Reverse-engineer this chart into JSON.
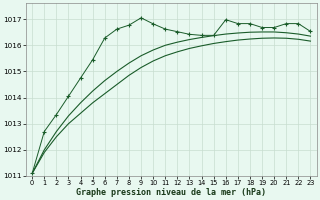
{
  "title": "Graphe pression niveau de la mer (hPa)",
  "bg_color": "#e8f8f0",
  "grid_color": "#c8ddd0",
  "line_color": "#1a5c2a",
  "xlim": [
    -0.5,
    23.5
  ],
  "ylim": [
    1011,
    1017.6
  ],
  "yticks": [
    1011,
    1012,
    1013,
    1014,
    1015,
    1016,
    1017
  ],
  "xticks": [
    0,
    1,
    2,
    3,
    4,
    5,
    6,
    7,
    8,
    9,
    10,
    11,
    12,
    13,
    14,
    15,
    16,
    17,
    18,
    19,
    20,
    21,
    22,
    23
  ],
  "line_marker_x": [
    0,
    1,
    2,
    3,
    4,
    5,
    6,
    7,
    8,
    9,
    10,
    11,
    12,
    13,
    14,
    15,
    16,
    17,
    18,
    19,
    20,
    21,
    22,
    23
  ],
  "line_marker_y": [
    1011.1,
    1012.7,
    1013.35,
    1014.1,
    1014.85,
    1015.5,
    1016.3,
    1016.65,
    1016.8,
    1017.1,
    1016.85,
    1016.65,
    1016.55,
    1016.45,
    1016.4,
    1016.4,
    1017.0,
    1016.85,
    1016.85,
    1016.7,
    1016.7,
    1016.85,
    1016.85,
    1016.55
  ],
  "line_smooth1_x": [
    0,
    1,
    2,
    3,
    4,
    5,
    6,
    7,
    8,
    9,
    10,
    11,
    12,
    13,
    14,
    15,
    16,
    17,
    18,
    19,
    20,
    21,
    22,
    23
  ],
  "line_smooth1_y": [
    1011.1,
    1011.9,
    1012.5,
    1013.0,
    1013.4,
    1013.8,
    1014.15,
    1014.5,
    1014.85,
    1015.15,
    1015.4,
    1015.6,
    1015.75,
    1015.88,
    1015.98,
    1016.07,
    1016.14,
    1016.2,
    1016.24,
    1016.27,
    1016.28,
    1016.27,
    1016.23,
    1016.16
  ],
  "line_smooth2_x": [
    0,
    1,
    2,
    3,
    4,
    5,
    6,
    7,
    8,
    9,
    10,
    11,
    12,
    13,
    14,
    15,
    16,
    17,
    18,
    19,
    20,
    21,
    22,
    23
  ],
  "line_smooth2_y": [
    1011.1,
    1012.0,
    1012.7,
    1013.3,
    1013.8,
    1014.25,
    1014.65,
    1015.0,
    1015.32,
    1015.6,
    1015.82,
    1016.0,
    1016.12,
    1016.22,
    1016.3,
    1016.37,
    1016.43,
    1016.47,
    1016.5,
    1016.51,
    1016.51,
    1016.48,
    1016.43,
    1016.35
  ],
  "line_jagged_x": [
    0,
    1,
    2,
    3,
    4,
    5,
    6,
    7,
    8,
    9,
    10,
    11,
    12,
    13,
    14,
    15,
    16,
    17,
    18,
    19,
    20,
    21,
    22,
    23
  ],
  "line_jagged_y": [
    1011.1,
    1012.7,
    1013.35,
    1014.05,
    1014.75,
    1015.45,
    1016.28,
    1016.62,
    1016.77,
    1017.05,
    1016.82,
    1016.62,
    1016.52,
    1016.42,
    1016.38,
    1016.38,
    1016.98,
    1016.83,
    1016.83,
    1016.68,
    1016.68,
    1016.83,
    1016.83,
    1016.53
  ]
}
